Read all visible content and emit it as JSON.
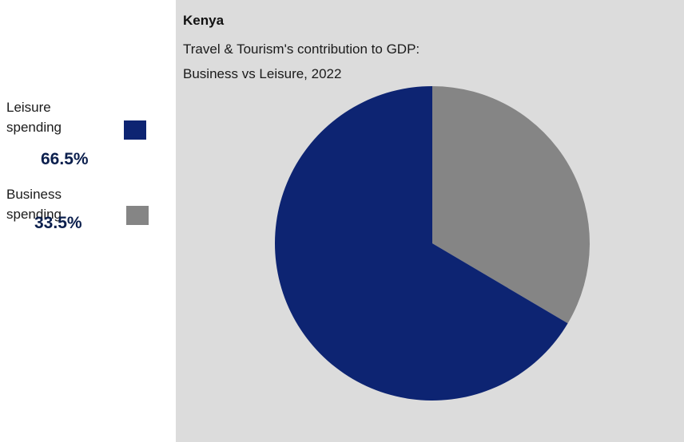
{
  "legend": {
    "items": [
      {
        "label_line1": "Leisure",
        "label_line2": "spending",
        "value": "66.5%",
        "color": "#0d2472"
      },
      {
        "label_line1": "Business",
        "label_line2": "spending",
        "value": "33.5%",
        "color": "#858585"
      }
    ]
  },
  "chart": {
    "title": "Kenya",
    "subtitle_line1": "Travel & Tourism's contribution to GDP:",
    "subtitle_line2": "Business vs Leisure, 2022"
  },
  "chart_data": {
    "type": "pie",
    "title": "Kenya",
    "subtitle": "Travel & Tourism's contribution to GDP: Business vs Leisure, 2022",
    "categories": [
      "Leisure spending",
      "Business spending"
    ],
    "values": [
      66.5,
      33.5
    ],
    "unit": "%",
    "colors": [
      "#0d2472",
      "#858585"
    ],
    "legend_position": "left"
  }
}
